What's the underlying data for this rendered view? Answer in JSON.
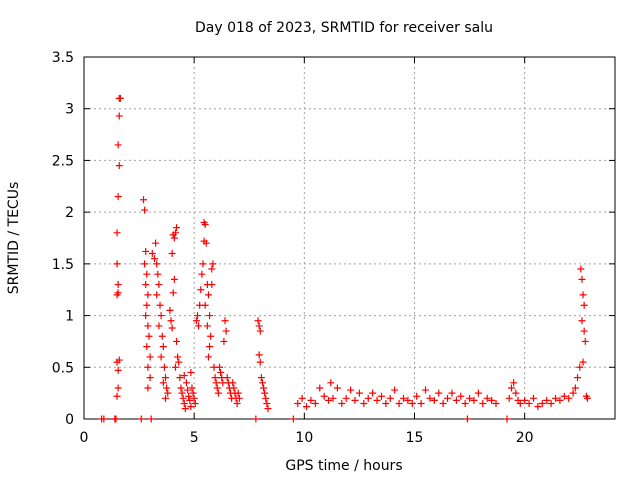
{
  "chart_data": {
    "type": "scatter",
    "title": "Day 018 of 2023, SRMTID for receiver salu",
    "xlabel": "GPS time / hours",
    "ylabel": "SRMTID / TECUs",
    "xlim": [
      0,
      24.1
    ],
    "ylim": [
      0,
      3.5
    ],
    "xticks": [
      0,
      5,
      10,
      15,
      20
    ],
    "xtick_labels": [
      "0",
      "5",
      "10",
      "15",
      "20"
    ],
    "yticks": [
      0,
      0.5,
      1,
      1.5,
      2,
      2.5,
      3,
      3.5
    ],
    "ytick_labels": [
      "0",
      "0.5",
      "1",
      "1.5",
      "2",
      "2.5",
      "3",
      "3.5"
    ],
    "grid": true,
    "marker": "+",
    "color": "#ff0000",
    "series": [
      {
        "name": "SRMTID",
        "points": [
          [
            0.8,
            0.0
          ],
          [
            0.9,
            0.0
          ],
          [
            1.4,
            0.0
          ],
          [
            1.45,
            0.0
          ],
          [
            1.5,
            1.2
          ],
          [
            1.55,
            1.3
          ],
          [
            1.6,
            3.1
          ],
          [
            1.65,
            3.1
          ],
          [
            1.6,
            2.93
          ],
          [
            1.55,
            2.65
          ],
          [
            1.6,
            2.45
          ],
          [
            1.55,
            2.15
          ],
          [
            1.5,
            1.8
          ],
          [
            1.5,
            1.5
          ],
          [
            1.55,
            1.22
          ],
          [
            1.6,
            0.57
          ],
          [
            1.5,
            0.55
          ],
          [
            1.55,
            0.47
          ],
          [
            1.55,
            0.3
          ],
          [
            1.5,
            0.22
          ],
          [
            2.6,
            0.0
          ],
          [
            2.7,
            2.12
          ],
          [
            2.75,
            2.02
          ],
          [
            2.8,
            1.62
          ],
          [
            2.75,
            1.5
          ],
          [
            2.85,
            1.4
          ],
          [
            2.8,
            1.3
          ],
          [
            2.9,
            1.2
          ],
          [
            2.85,
            1.1
          ],
          [
            2.8,
            1.0
          ],
          [
            2.9,
            0.9
          ],
          [
            2.95,
            0.8
          ],
          [
            2.85,
            0.7
          ],
          [
            3.0,
            0.6
          ],
          [
            2.9,
            0.5
          ],
          [
            3.0,
            0.4
          ],
          [
            3.05,
            0.0
          ],
          [
            2.9,
            0.3
          ],
          [
            3.1,
            1.6
          ],
          [
            3.2,
            1.55
          ],
          [
            3.25,
            1.7
          ],
          [
            3.3,
            1.5
          ],
          [
            3.35,
            1.4
          ],
          [
            3.4,
            1.3
          ],
          [
            3.3,
            1.2
          ],
          [
            3.45,
            1.1
          ],
          [
            3.5,
            1.0
          ],
          [
            3.4,
            0.9
          ],
          [
            3.55,
            0.8
          ],
          [
            3.6,
            0.7
          ],
          [
            3.5,
            0.6
          ],
          [
            3.65,
            0.5
          ],
          [
            3.7,
            0.4
          ],
          [
            3.6,
            0.35
          ],
          [
            3.75,
            0.3
          ],
          [
            3.8,
            0.25
          ],
          [
            3.7,
            0.2
          ],
          [
            3.9,
            1.05
          ],
          [
            3.95,
            0.95
          ],
          [
            4.0,
            0.88
          ],
          [
            4.05,
            1.22
          ],
          [
            4.1,
            1.35
          ],
          [
            4.0,
            1.6
          ],
          [
            4.1,
            1.75
          ],
          [
            4.15,
            1.8
          ],
          [
            4.2,
            1.85
          ],
          [
            4.05,
            1.78
          ],
          [
            4.2,
            0.75
          ],
          [
            4.25,
            0.6
          ],
          [
            4.3,
            0.55
          ],
          [
            4.15,
            0.5
          ],
          [
            4.35,
            0.4
          ],
          [
            4.4,
            0.3
          ],
          [
            4.45,
            0.25
          ],
          [
            4.5,
            0.2
          ],
          [
            4.55,
            0.15
          ],
          [
            4.6,
            0.1
          ],
          [
            4.65,
            0.35
          ],
          [
            4.7,
            0.28
          ],
          [
            4.75,
            0.22
          ],
          [
            4.8,
            0.18
          ],
          [
            4.85,
            0.12
          ],
          [
            4.9,
            0.3
          ],
          [
            4.95,
            0.25
          ],
          [
            5.0,
            0.2
          ],
          [
            5.05,
            0.15
          ],
          [
            4.55,
            0.42
          ],
          [
            4.85,
            0.45
          ],
          [
            5.1,
            0.95
          ],
          [
            5.15,
            1.0
          ],
          [
            5.2,
            0.9
          ],
          [
            5.25,
            1.1
          ],
          [
            5.3,
            1.25
          ],
          [
            5.35,
            1.4
          ],
          [
            5.4,
            1.5
          ],
          [
            5.45,
            1.72
          ],
          [
            5.5,
            1.88
          ],
          [
            5.45,
            1.9
          ],
          [
            5.55,
            1.7
          ],
          [
            5.6,
            1.3
          ],
          [
            5.65,
            1.2
          ],
          [
            5.5,
            1.1
          ],
          [
            5.7,
            1.0
          ],
          [
            5.6,
            0.9
          ],
          [
            5.75,
            0.8
          ],
          [
            5.8,
            1.45
          ],
          [
            5.85,
            1.5
          ],
          [
            5.8,
            1.3
          ],
          [
            5.7,
            0.7
          ],
          [
            5.65,
            0.6
          ],
          [
            5.9,
            0.5
          ],
          [
            5.95,
            0.4
          ],
          [
            6.0,
            0.35
          ],
          [
            6.05,
            0.3
          ],
          [
            6.1,
            0.25
          ],
          [
            6.15,
            0.5
          ],
          [
            6.2,
            0.45
          ],
          [
            6.25,
            0.4
          ],
          [
            6.3,
            0.35
          ],
          [
            6.4,
            0.95
          ],
          [
            6.45,
            0.85
          ],
          [
            6.35,
            0.75
          ],
          [
            6.5,
            0.4
          ],
          [
            6.55,
            0.35
          ],
          [
            6.6,
            0.3
          ],
          [
            6.65,
            0.25
          ],
          [
            6.7,
            0.2
          ],
          [
            6.75,
            0.35
          ],
          [
            6.8,
            0.3
          ],
          [
            6.85,
            0.25
          ],
          [
            6.9,
            0.2
          ],
          [
            6.95,
            0.15
          ],
          [
            7.0,
            0.25
          ],
          [
            7.05,
            0.2
          ],
          [
            7.8,
            0.0
          ],
          [
            7.9,
            0.95
          ],
          [
            7.95,
            0.9
          ],
          [
            8.0,
            0.85
          ],
          [
            7.95,
            0.62
          ],
          [
            8.0,
            0.55
          ],
          [
            8.05,
            0.4
          ],
          [
            8.1,
            0.35
          ],
          [
            8.15,
            0.3
          ],
          [
            8.2,
            0.25
          ],
          [
            8.25,
            0.2
          ],
          [
            8.3,
            0.15
          ],
          [
            8.35,
            0.1
          ],
          [
            9.5,
            0.0
          ],
          [
            9.7,
            0.15
          ],
          [
            9.9,
            0.2
          ],
          [
            10.1,
            0.12
          ],
          [
            10.3,
            0.18
          ],
          [
            10.5,
            0.15
          ],
          [
            10.7,
            0.3
          ],
          [
            10.9,
            0.22
          ],
          [
            11.1,
            0.18
          ],
          [
            11.2,
            0.35
          ],
          [
            11.3,
            0.2
          ],
          [
            11.5,
            0.3
          ],
          [
            11.7,
            0.15
          ],
          [
            11.9,
            0.2
          ],
          [
            12.1,
            0.28
          ],
          [
            12.3,
            0.18
          ],
          [
            12.5,
            0.25
          ],
          [
            12.7,
            0.15
          ],
          [
            12.9,
            0.2
          ],
          [
            13.1,
            0.25
          ],
          [
            13.3,
            0.18
          ],
          [
            13.5,
            0.22
          ],
          [
            13.7,
            0.15
          ],
          [
            13.9,
            0.2
          ],
          [
            14.1,
            0.28
          ],
          [
            14.3,
            0.15
          ],
          [
            14.5,
            0.2
          ],
          [
            14.7,
            0.18
          ],
          [
            14.9,
            0.15
          ],
          [
            15.1,
            0.22
          ],
          [
            15.3,
            0.15
          ],
          [
            15.5,
            0.28
          ],
          [
            15.7,
            0.2
          ],
          [
            15.9,
            0.18
          ],
          [
            16.1,
            0.25
          ],
          [
            16.3,
            0.15
          ],
          [
            16.5,
            0.2
          ],
          [
            16.7,
            0.25
          ],
          [
            16.9,
            0.18
          ],
          [
            17.1,
            0.22
          ],
          [
            17.3,
            0.15
          ],
          [
            17.4,
            0.0
          ],
          [
            17.5,
            0.2
          ],
          [
            17.7,
            0.18
          ],
          [
            17.9,
            0.25
          ],
          [
            18.1,
            0.15
          ],
          [
            18.3,
            0.2
          ],
          [
            18.5,
            0.18
          ],
          [
            18.7,
            0.15
          ],
          [
            19.2,
            0.0
          ],
          [
            19.3,
            0.2
          ],
          [
            19.4,
            0.3
          ],
          [
            19.5,
            0.35
          ],
          [
            19.6,
            0.25
          ],
          [
            19.7,
            0.18
          ],
          [
            19.8,
            0.15
          ],
          [
            20.0,
            0.18
          ],
          [
            20.2,
            0.15
          ],
          [
            20.4,
            0.2
          ],
          [
            20.6,
            0.12
          ],
          [
            20.8,
            0.15
          ],
          [
            21.0,
            0.18
          ],
          [
            21.2,
            0.15
          ],
          [
            21.4,
            0.2
          ],
          [
            21.6,
            0.18
          ],
          [
            21.8,
            0.22
          ],
          [
            22.0,
            0.2
          ],
          [
            22.2,
            0.25
          ],
          [
            22.3,
            0.3
          ],
          [
            22.4,
            0.4
          ],
          [
            22.5,
            0.5
          ],
          [
            22.55,
            1.45
          ],
          [
            22.6,
            1.35
          ],
          [
            22.65,
            1.2
          ],
          [
            22.7,
            1.1
          ],
          [
            22.6,
            0.95
          ],
          [
            22.7,
            0.85
          ],
          [
            22.75,
            0.75
          ],
          [
            22.65,
            0.55
          ],
          [
            22.8,
            0.22
          ],
          [
            22.85,
            0.2
          ]
        ]
      }
    ]
  }
}
